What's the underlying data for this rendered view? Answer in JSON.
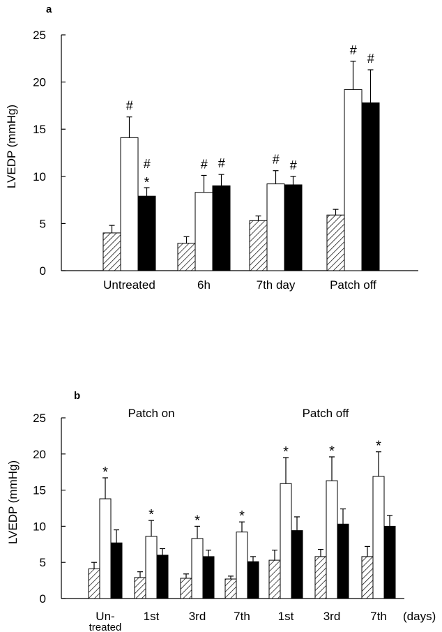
{
  "chart_data": [
    {
      "type": "bar",
      "panel_label": "a",
      "ylabel": "LVEDP (mmHg)",
      "ylim": [
        0,
        25
      ],
      "yticks": [
        "0",
        "5",
        "10",
        "15",
        "20",
        "25"
      ],
      "categories": [
        "Untreated",
        "6h",
        "7th day",
        "Patch off"
      ],
      "series": [
        {
          "pattern": "hatched",
          "values": [
            4.0,
            2.9,
            5.3,
            5.9
          ],
          "errors": [
            0.8,
            0.7,
            0.5,
            0.6
          ],
          "annotations": [
            "",
            "",
            "",
            ""
          ]
        },
        {
          "pattern": "open",
          "values": [
            14.1,
            8.3,
            9.2,
            19.2
          ],
          "errors": [
            2.2,
            1.8,
            1.4,
            3.0
          ],
          "annotations": [
            "#",
            "#",
            "#",
            "#"
          ]
        },
        {
          "pattern": "filled",
          "values": [
            7.9,
            9.0,
            9.1,
            17.8
          ],
          "errors": [
            0.9,
            1.2,
            0.9,
            3.5
          ],
          "annotations": [
            "#\n*",
            "#",
            "#",
            "#"
          ]
        }
      ]
    },
    {
      "type": "bar",
      "panel_label": "b",
      "ylabel": "LVEDP (mmHg)",
      "ylim": [
        0,
        25
      ],
      "yticks": [
        "0",
        "5",
        "10",
        "15",
        "20",
        "25"
      ],
      "group_labels": [
        "Patch on",
        "Patch off"
      ],
      "categories": [
        "Un-\ntreated",
        "1st",
        "3rd",
        "7th",
        "1st",
        "3rd",
        "7th"
      ],
      "x_unit_label": "(days)",
      "series": [
        {
          "pattern": "hatched",
          "values": [
            4.1,
            2.9,
            2.8,
            2.7,
            5.3,
            5.8,
            5.8
          ],
          "errors": [
            0.9,
            0.8,
            0.6,
            0.4,
            1.4,
            1.0,
            1.4
          ],
          "annotations": [
            "",
            "",
            "",
            "",
            "",
            "",
            ""
          ]
        },
        {
          "pattern": "open",
          "values": [
            13.8,
            8.6,
            8.3,
            9.2,
            15.9,
            16.3,
            16.9
          ],
          "errors": [
            2.9,
            2.2,
            1.7,
            1.4,
            3.6,
            3.3,
            3.4
          ],
          "annotations": [
            "*",
            "*",
            "*",
            "*",
            "*",
            "*",
            "*"
          ]
        },
        {
          "pattern": "filled",
          "values": [
            7.7,
            6.0,
            5.8,
            5.1,
            9.4,
            10.3,
            10.0
          ],
          "errors": [
            1.8,
            0.9,
            0.9,
            0.7,
            1.9,
            2.1,
            1.5
          ],
          "annotations": [
            "",
            "",
            "",
            "",
            "",
            "",
            ""
          ]
        }
      ]
    }
  ]
}
